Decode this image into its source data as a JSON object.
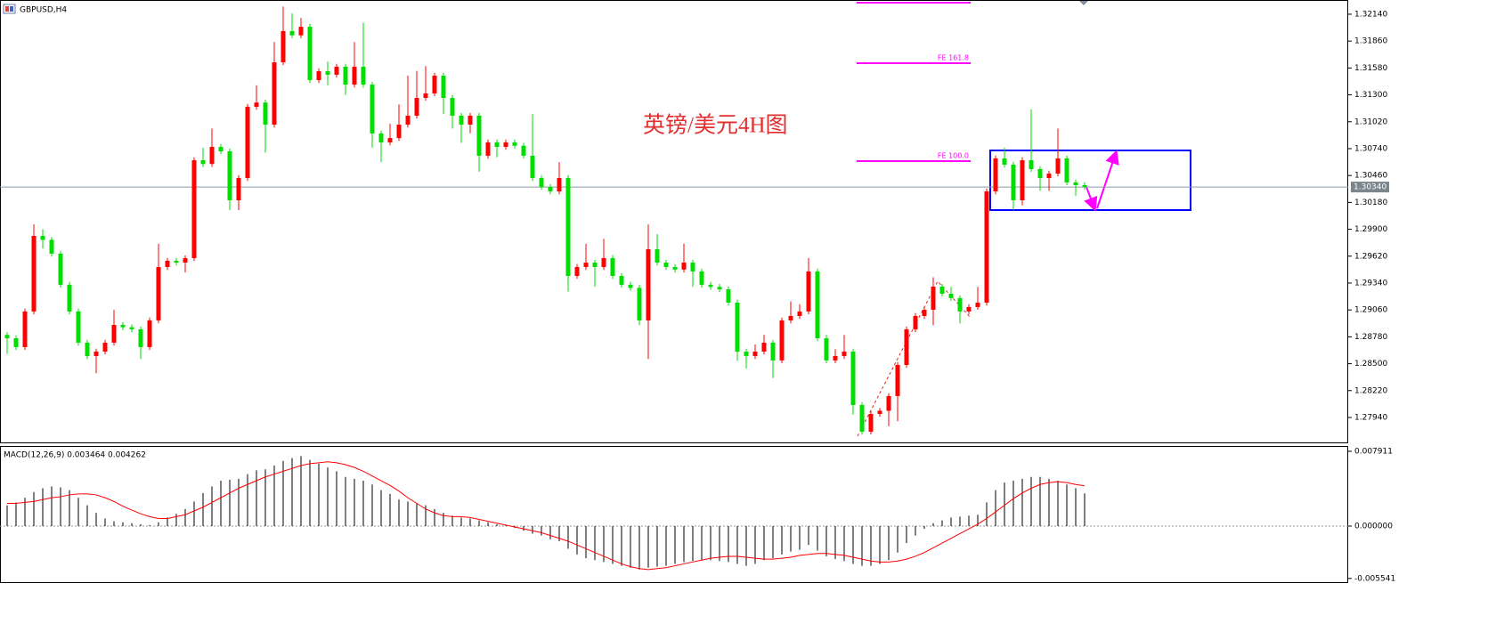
{
  "chart_data": [
    {
      "type": "candlestick",
      "title": "GBPUSD,H4",
      "annotation": "英镑/美元4H图",
      "up_color": "#ff0000",
      "down_color": "#00dd00",
      "ylim": [
        1.27671,
        1.32288
      ],
      "yticks": [
        {
          "value": 1.3214,
          "label": "1.32140"
        },
        {
          "value": 1.3186,
          "label": "1.31860"
        },
        {
          "value": 1.3158,
          "label": "1.31580"
        },
        {
          "value": 1.313,
          "label": "1.31300"
        },
        {
          "value": 1.3102,
          "label": "1.31020"
        },
        {
          "value": 1.3074,
          "label": "1.30740"
        },
        {
          "value": 1.3046,
          "label": "1.30460"
        },
        {
          "value": 1.3018,
          "label": "1.30180"
        },
        {
          "value": 1.299,
          "label": "1.29900"
        },
        {
          "value": 1.2962,
          "label": "1.29620"
        },
        {
          "value": 1.2934,
          "label": "1.29340"
        },
        {
          "value": 1.2906,
          "label": "1.29060"
        },
        {
          "value": 1.2878,
          "label": "1.28780"
        },
        {
          "value": 1.285,
          "label": "1.28500"
        },
        {
          "value": 1.2822,
          "label": "1.28220"
        },
        {
          "value": 1.2794,
          "label": "1.27940"
        }
      ],
      "current_price": {
        "value": 1.3034,
        "label": "1.30340"
      },
      "fe_color": "#ff00ff",
      "fe_levels": [
        {
          "value": 1.3226,
          "label": null
        },
        {
          "value": 1.3163,
          "label": "FE 161.8"
        },
        {
          "value": 1.3061,
          "label": "FE 100.0"
        }
      ],
      "ohlc": [
        [
          1.288,
          1.2883,
          1.286,
          1.28765
        ],
        [
          1.28765,
          1.28795,
          1.28643,
          1.28673
        ],
        [
          1.28673,
          1.29074,
          1.28643,
          1.29044
        ],
        [
          1.29044,
          1.2995,
          1.29014,
          1.29831
        ],
        [
          1.29831,
          1.299,
          1.297,
          1.2979
        ],
        [
          1.2979,
          1.2982,
          1.29616,
          1.29646
        ],
        [
          1.29646,
          1.29676,
          1.29292,
          1.29322
        ],
        [
          1.29322,
          1.29352,
          1.29014,
          1.29044
        ],
        [
          1.29044,
          1.29074,
          1.28689,
          1.28719
        ],
        [
          1.28719,
          1.28749,
          1.2855,
          1.2858
        ],
        [
          1.2858,
          1.28656,
          1.284,
          1.28626
        ],
        [
          1.28626,
          1.28749,
          1.28596,
          1.28719
        ],
        [
          1.28719,
          1.2906,
          1.28689,
          1.28904
        ],
        [
          1.28904,
          1.28934,
          1.2885,
          1.2888
        ],
        [
          1.2888,
          1.2891,
          1.28828,
          1.28858
        ],
        [
          1.28858,
          1.28888,
          1.2855,
          1.28673
        ],
        [
          1.28673,
          1.28981,
          1.28643,
          1.28951
        ],
        [
          1.28951,
          1.2975,
          1.28921,
          1.29507
        ],
        [
          1.29507,
          1.29602,
          1.29477,
          1.29572
        ],
        [
          1.29572,
          1.29602,
          1.29523,
          1.29553
        ],
        [
          1.29553,
          1.2963,
          1.2945,
          1.296
        ],
        [
          1.296,
          1.30649,
          1.2957,
          1.30619
        ],
        [
          1.30619,
          1.3075,
          1.3055,
          1.3058
        ],
        [
          1.3058,
          1.3095,
          1.3055,
          1.30758
        ],
        [
          1.30758,
          1.30788,
          1.30682,
          1.30712
        ],
        [
          1.30712,
          1.30742,
          1.301,
          1.30202
        ],
        [
          1.30202,
          1.30464,
          1.301,
          1.30434
        ],
        [
          1.30434,
          1.31206,
          1.30404,
          1.31176
        ],
        [
          1.31176,
          1.314,
          1.31146,
          1.3122
        ],
        [
          1.3122,
          1.3125,
          1.307,
          1.3099
        ],
        [
          1.3099,
          1.3185,
          1.3096,
          1.31639
        ],
        [
          1.31639,
          1.3222,
          1.31609,
          1.31964
        ],
        [
          1.31964,
          1.3215,
          1.3189,
          1.3192
        ],
        [
          1.3192,
          1.321,
          1.3189,
          1.3201
        ],
        [
          1.3201,
          1.3204,
          1.31424,
          1.31454
        ],
        [
          1.31454,
          1.31576,
          1.31424,
          1.31546
        ],
        [
          1.31546,
          1.3165,
          1.314,
          1.3151
        ],
        [
          1.3151,
          1.31623,
          1.3148,
          1.31593
        ],
        [
          1.31593,
          1.31623,
          1.313,
          1.31407
        ],
        [
          1.31407,
          1.3185,
          1.31377,
          1.31593
        ],
        [
          1.31593,
          1.3205,
          1.31377,
          1.31407
        ],
        [
          1.31407,
          1.31437,
          1.3075,
          1.30898
        ],
        [
          1.30898,
          1.30928,
          1.306,
          1.30805
        ],
        [
          1.30805,
          1.31,
          1.30775,
          1.3085
        ],
        [
          1.3085,
          1.312,
          1.3082,
          1.3099
        ],
        [
          1.3099,
          1.315,
          1.3096,
          1.31083
        ],
        [
          1.31083,
          1.3155,
          1.31053,
          1.31268
        ],
        [
          1.31268,
          1.316,
          1.31238,
          1.31315
        ],
        [
          1.31315,
          1.3153,
          1.31285,
          1.315
        ],
        [
          1.315,
          1.3153,
          1.311,
          1.31268
        ],
        [
          1.31268,
          1.31298,
          1.3095,
          1.31083
        ],
        [
          1.31083,
          1.31113,
          1.308,
          1.3099
        ],
        [
          1.3099,
          1.31113,
          1.309,
          1.31083
        ],
        [
          1.31083,
          1.31113,
          1.305,
          1.30666
        ],
        [
          1.30666,
          1.30835,
          1.30636,
          1.30805
        ],
        [
          1.30805,
          1.30835,
          1.3065,
          1.30758
        ],
        [
          1.30758,
          1.30835,
          1.30728,
          1.30805
        ],
        [
          1.30805,
          1.30835,
          1.3074,
          1.3077
        ],
        [
          1.3077,
          1.308,
          1.30636,
          1.30666
        ],
        [
          1.30666,
          1.311,
          1.30404,
          1.30434
        ],
        [
          1.30434,
          1.30464,
          1.30311,
          1.30341
        ],
        [
          1.30341,
          1.30371,
          1.30265,
          1.30295
        ],
        [
          1.30295,
          1.306,
          1.30265,
          1.30434
        ],
        [
          1.30434,
          1.30464,
          1.2925,
          1.29414
        ],
        [
          1.29414,
          1.29537,
          1.29384,
          1.29507
        ],
        [
          1.29507,
          1.2975,
          1.29477,
          1.29553
        ],
        [
          1.29553,
          1.29583,
          1.293,
          1.29507
        ],
        [
          1.29507,
          1.298,
          1.29477,
          1.296
        ],
        [
          1.296,
          1.2963,
          1.29384,
          1.29414
        ],
        [
          1.29414,
          1.29444,
          1.29292,
          1.29322
        ],
        [
          1.29322,
          1.29352,
          1.2926,
          1.2929
        ],
        [
          1.2929,
          1.2932,
          1.289,
          1.28951
        ],
        [
          1.28951,
          1.2995,
          1.2855,
          1.29692
        ],
        [
          1.29692,
          1.2985,
          1.29523,
          1.29553
        ],
        [
          1.29553,
          1.29583,
          1.29477,
          1.29507
        ],
        [
          1.29507,
          1.29537,
          1.2945,
          1.2948
        ],
        [
          1.2948,
          1.2975,
          1.2945,
          1.29553
        ],
        [
          1.29553,
          1.29583,
          1.293,
          1.29461
        ],
        [
          1.29461,
          1.29491,
          1.29292,
          1.29322
        ],
        [
          1.29322,
          1.29352,
          1.2927,
          1.293
        ],
        [
          1.293,
          1.2933,
          1.29245,
          1.29275
        ],
        [
          1.29275,
          1.29305,
          1.29106,
          1.29136
        ],
        [
          1.29136,
          1.29166,
          1.2853,
          1.28626
        ],
        [
          1.28626,
          1.28656,
          1.2845,
          1.2858
        ],
        [
          1.2858,
          1.287,
          1.2855,
          1.28626
        ],
        [
          1.28626,
          1.288,
          1.28596,
          1.28719
        ],
        [
          1.28719,
          1.28749,
          1.2835,
          1.28534
        ],
        [
          1.28534,
          1.2898,
          1.28504,
          1.28951
        ],
        [
          1.28951,
          1.2915,
          1.28921,
          1.28997
        ],
        [
          1.28997,
          1.2912,
          1.28967,
          1.29044
        ],
        [
          1.29044,
          1.296,
          1.29014,
          1.29461
        ],
        [
          1.29461,
          1.29491,
          1.28735,
          1.28765
        ],
        [
          1.28765,
          1.288,
          1.28504,
          1.28534
        ],
        [
          1.28534,
          1.2865,
          1.28504,
          1.2858
        ],
        [
          1.2858,
          1.288,
          1.2855,
          1.28626
        ],
        [
          1.28626,
          1.28656,
          1.2797,
          1.2807
        ],
        [
          1.2807,
          1.281,
          1.27762,
          1.27792
        ],
        [
          1.27792,
          1.28007,
          1.27762,
          1.27977
        ],
        [
          1.27977,
          1.2804,
          1.27947,
          1.2801
        ],
        [
          1.2801,
          1.28193,
          1.2785,
          1.28163
        ],
        [
          1.28163,
          1.28517,
          1.279,
          1.28487
        ],
        [
          1.28487,
          1.28888,
          1.28457,
          1.28858
        ],
        [
          1.28858,
          1.29027,
          1.28828,
          1.28997
        ],
        [
          1.28997,
          1.29092,
          1.28967,
          1.29062
        ],
        [
          1.29062,
          1.294,
          1.289,
          1.29303
        ],
        [
          1.29303,
          1.29333,
          1.29199,
          1.29229
        ],
        [
          1.29229,
          1.293,
          1.29153,
          1.29183
        ],
        [
          1.29183,
          1.29213,
          1.2892,
          1.29044
        ],
        [
          1.29044,
          1.2912,
          1.29014,
          1.2909
        ],
        [
          1.2909,
          1.293,
          1.2906,
          1.29136
        ],
        [
          1.29136,
          1.30325,
          1.29106,
          1.30295
        ],
        [
          1.30295,
          1.30668,
          1.30265,
          1.30638
        ],
        [
          1.30638,
          1.3075,
          1.30543,
          1.30573
        ],
        [
          1.30573,
          1.30603,
          1.301,
          1.30202
        ],
        [
          1.30202,
          1.3065,
          1.3015,
          1.30619
        ],
        [
          1.30619,
          1.3115,
          1.30497,
          1.30527
        ],
        [
          1.30527,
          1.30557,
          1.303,
          1.30434
        ],
        [
          1.30434,
          1.3051,
          1.303,
          1.3048
        ],
        [
          1.3048,
          1.3095,
          1.3045,
          1.30638
        ],
        [
          1.30638,
          1.30668,
          1.30358,
          1.30388
        ],
        [
          1.30388,
          1.30418,
          1.3025,
          1.3036
        ],
        [
          1.3036,
          1.3039,
          1.30311,
          1.30341
        ]
      ]
    },
    {
      "type": "macd",
      "title": "MACD(12,26,9) 0.003464 0.004262",
      "ylim": [
        -0.00603,
        0.00838
      ],
      "yticks": [
        0.007911,
        {
          "value": 0,
          "label": "0.000000"
        },
        -0.005541
      ],
      "histogram": {
        "color": "#000000",
        "values": [
          0.0022,
          0.0025,
          0.003,
          0.0036,
          0.004,
          0.0042,
          0.0041,
          0.0038,
          0.003,
          0.0022,
          0.0014,
          0.0008,
          0.0005,
          0.0004,
          0.0003,
          0.0002,
          0.0001,
          0.0004,
          0.0009,
          0.0013,
          0.0018,
          0.0026,
          0.0035,
          0.0042,
          0.0048,
          0.0049,
          0.005,
          0.0055,
          0.0059,
          0.006,
          0.0064,
          0.0069,
          0.0072,
          0.0074,
          0.007,
          0.0066,
          0.0062,
          0.0058,
          0.0052,
          0.005,
          0.0048,
          0.0044,
          0.0038,
          0.0034,
          0.0028,
          0.0026,
          0.0024,
          0.0022,
          0.0018,
          0.0014,
          0.0011,
          0.0009,
          0.0008,
          0.0006,
          0.0004,
          0.0002,
          0.0001,
          -0.0002,
          -0.0005,
          -0.0008,
          -0.001,
          -0.0014,
          -0.0016,
          -0.0024,
          -0.003,
          -0.0034,
          -0.0036,
          -0.0038,
          -0.004,
          -0.0042,
          -0.0044,
          -0.0046,
          -0.0044,
          -0.0043,
          -0.0042,
          -0.004,
          -0.0038,
          -0.0037,
          -0.0036,
          -0.0036,
          -0.0037,
          -0.0038,
          -0.004,
          -0.0042,
          -0.004,
          -0.0036,
          -0.0034,
          -0.003,
          -0.0027,
          -0.0025,
          -0.002,
          -0.0026,
          -0.0032,
          -0.0035,
          -0.0037,
          -0.004,
          -0.0042,
          -0.0042,
          -0.004,
          -0.0036,
          -0.0028,
          -0.0018,
          -0.001,
          -0.0003,
          0.0003,
          0.0006,
          0.0009,
          0.001,
          0.0011,
          0.0012,
          0.0025,
          0.0038,
          0.0046,
          0.0048,
          0.005,
          0.0052,
          0.0052,
          0.005,
          0.0048,
          0.0044,
          0.004,
          0.003464
        ]
      },
      "signal": {
        "color": "#ff0000",
        "values": [
          0.0024,
          0.0024,
          0.0025,
          0.0026,
          0.0028,
          0.003,
          0.0031,
          0.0033,
          0.0034,
          0.0034,
          0.0033,
          0.003,
          0.0026,
          0.0021,
          0.0017,
          0.0013,
          0.001,
          0.0008,
          0.0008,
          0.001,
          0.0012,
          0.0016,
          0.002,
          0.0025,
          0.003,
          0.0035,
          0.004,
          0.0044,
          0.0048,
          0.0052,
          0.0055,
          0.0058,
          0.0061,
          0.0064,
          0.0066,
          0.0067,
          0.0068,
          0.0067,
          0.0065,
          0.0062,
          0.0058,
          0.0053,
          0.0048,
          0.0043,
          0.0037,
          0.003,
          0.0024,
          0.0018,
          0.0014,
          0.0011,
          0.001,
          0.001,
          0.0009,
          0.0007,
          0.0005,
          0.0003,
          0.0001,
          -0.0001,
          -0.0003,
          -0.0005,
          -0.0007,
          -0.001,
          -0.0013,
          -0.0016,
          -0.002,
          -0.0024,
          -0.0028,
          -0.0032,
          -0.0036,
          -0.004,
          -0.0043,
          -0.0045,
          -0.0046,
          -0.0045,
          -0.0044,
          -0.0042,
          -0.004,
          -0.0038,
          -0.0036,
          -0.0034,
          -0.0033,
          -0.0032,
          -0.0032,
          -0.0033,
          -0.0034,
          -0.0035,
          -0.0035,
          -0.0034,
          -0.0033,
          -0.0031,
          -0.003,
          -0.0029,
          -0.0029,
          -0.003,
          -0.0031,
          -0.0033,
          -0.0035,
          -0.0037,
          -0.0038,
          -0.0038,
          -0.0037,
          -0.0035,
          -0.0032,
          -0.0028,
          -0.0023,
          -0.0018,
          -0.0013,
          -0.0008,
          -0.0003,
          0.0002,
          0.0008,
          0.0015,
          0.0022,
          0.0029,
          0.0035,
          0.004,
          0.0044,
          0.0046,
          0.0047,
          0.0046,
          0.0044,
          0.004262
        ]
      }
    }
  ]
}
